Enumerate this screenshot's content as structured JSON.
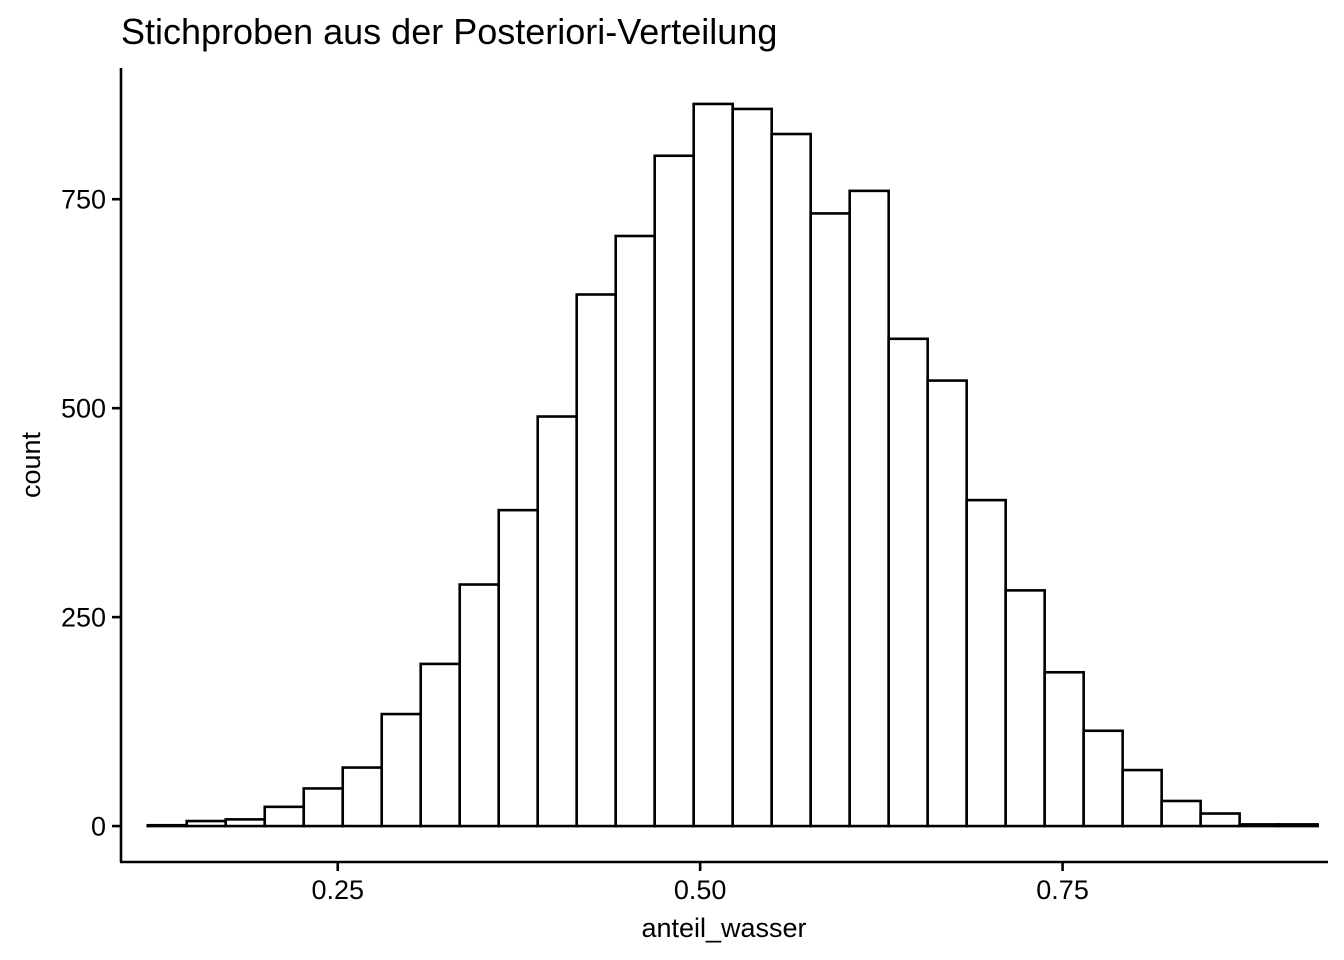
{
  "chart_data": {
    "type": "bar",
    "subtype": "histogram",
    "title": "Stichproben aus der Posteriori-Verteilung",
    "xlabel": "anteil_wasser",
    "ylabel": "count",
    "xlim": [
      0.1005,
      0.9331
    ],
    "ylim": [
      -43,
      907
    ],
    "x_ticks": [
      0.25,
      0.5,
      0.75
    ],
    "x_tick_labels": [
      "0.25",
      "0.50",
      "0.75"
    ],
    "y_ticks": [
      0,
      250,
      500,
      750
    ],
    "y_tick_labels": [
      "0",
      "250",
      "500",
      "750"
    ],
    "grid": false,
    "bin_width": 0.0269,
    "bin_centers": [
      0.1324,
      0.1593,
      0.1862,
      0.2131,
      0.24,
      0.2669,
      0.2938,
      0.3207,
      0.3476,
      0.3745,
      0.4014,
      0.4283,
      0.4552,
      0.4821,
      0.509,
      0.5359,
      0.5628,
      0.5897,
      0.6166,
      0.6435,
      0.6704,
      0.6973,
      0.7242,
      0.7511,
      0.778,
      0.8049,
      0.8318,
      0.8587,
      0.8856,
      0.9125
    ],
    "values": [
      1,
      6,
      8,
      23,
      45,
      70,
      134,
      194,
      289,
      378,
      490,
      636,
      706,
      802,
      864,
      858,
      828,
      733,
      760,
      583,
      533,
      390,
      282,
      184,
      114,
      67,
      30,
      15,
      2,
      2
    ],
    "colors": {
      "fill": "#ffffff",
      "outline": "#000000"
    }
  }
}
